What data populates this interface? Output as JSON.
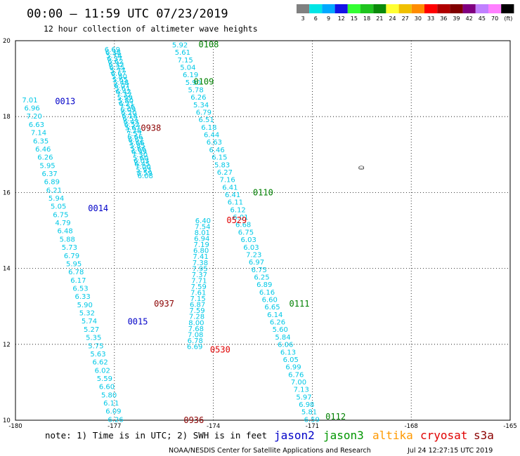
{
  "header": {
    "title": "00:00 – 11:59 UTC 07/23/2019",
    "subtitle": "12 hour collection of altimeter wave heights"
  },
  "legend": {
    "unit_label": "(ft)",
    "bins": [
      {
        "label": "3",
        "color": "#808080"
      },
      {
        "label": "6",
        "color": "#00e5e5"
      },
      {
        "label": "9",
        "color": "#00a8ff"
      },
      {
        "label": "12",
        "color": "#1414e6"
      },
      {
        "label": "15",
        "color": "#33ff33"
      },
      {
        "label": "18",
        "color": "#1fc41f"
      },
      {
        "label": "21",
        "color": "#0a8a0a"
      },
      {
        "label": "24",
        "color": "#ffff33"
      },
      {
        "label": "27",
        "color": "#f0c000"
      },
      {
        "label": "30",
        "color": "#ff8c00"
      },
      {
        "label": "33",
        "color": "#ff0000"
      },
      {
        "label": "36",
        "color": "#b00000"
      },
      {
        "label": "39",
        "color": "#800000"
      },
      {
        "label": "42",
        "color": "#800080"
      },
      {
        "label": "45",
        "color": "#c080ff"
      },
      {
        "label": "70",
        "color": "#ff80ff"
      },
      {
        "label": "",
        "color": "#000000"
      }
    ]
  },
  "map": {
    "lon_range": [
      -180,
      -165
    ],
    "lat_range": [
      10,
      20
    ],
    "lon_ticks": [
      "-180",
      "-177",
      "-174",
      "-171",
      "-168",
      "-165"
    ],
    "lat_ticks": [
      "10",
      "12",
      "14",
      "16",
      "18",
      "20"
    ],
    "island_label": "⛀"
  },
  "passes": [
    {
      "time": "0013",
      "satellite": "jason2",
      "color": "#0000c8",
      "lon": -178.8,
      "lat": 18.4
    },
    {
      "time": "0014",
      "satellite": "jason2",
      "color": "#0000c8",
      "lon": -177.8,
      "lat": 15.58
    },
    {
      "time": "0015",
      "satellite": "jason2",
      "color": "#0000c8",
      "lon": -176.6,
      "lat": 12.6
    },
    {
      "time": "0108",
      "satellite": "jason3",
      "color": "#008000",
      "lon": -174.45,
      "lat": 19.9
    },
    {
      "time": "0109",
      "satellite": "jason3",
      "color": "#008000",
      "lon": -174.6,
      "lat": 18.92
    },
    {
      "time": "0110",
      "satellite": "jason3",
      "color": "#008000",
      "lon": -172.8,
      "lat": 16.0
    },
    {
      "time": "0111",
      "satellite": "jason3",
      "color": "#008000",
      "lon": -171.7,
      "lat": 13.07
    },
    {
      "time": "0112",
      "satellite": "jason3",
      "color": "#008000",
      "lon": -170.6,
      "lat": 10.09
    },
    {
      "time": "0529",
      "satellite": "cryosat",
      "color": "#e00000",
      "lon": -173.6,
      "lat": 15.27
    },
    {
      "time": "0530",
      "satellite": "cryosat",
      "color": "#e00000",
      "lon": -174.1,
      "lat": 11.86
    },
    {
      "time": "0936",
      "satellite": "s3a",
      "color": "#8b0000",
      "lon": -174.9,
      "lat": 10.0
    },
    {
      "time": "0937",
      "satellite": "s3a",
      "color": "#8b0000",
      "lon": -175.8,
      "lat": 13.07
    },
    {
      "time": "0938",
      "satellite": "s3a",
      "color": "#8b0000",
      "lon": -176.2,
      "lat": 17.7
    }
  ],
  "tracks": [
    {
      "satellite": "jason2",
      "color": "#00c8e6",
      "start": [
        -179.8,
        18.45
      ],
      "end": [
        -177.2,
        10.03
      ],
      "values": [
        "7.01",
        "6.96",
        "7.20",
        "6.63",
        "7.14",
        "6.35",
        "6.46",
        "6.26",
        "5.95",
        "6.37",
        "6.89",
        "6.21",
        "5.94",
        "5.05",
        "6.75",
        "4.79",
        "6.48",
        "5.88",
        "5.73",
        "6.79",
        "5.95",
        "6.78",
        "6.17",
        "6.53",
        "6.33",
        "5.90",
        "5.32",
        "5.74",
        "5.27",
        "5.35",
        "5.75",
        "5.63",
        "6.62",
        "6.02",
        "5.59",
        "6.60",
        "5.80",
        "6.11",
        "6.09",
        "6.26"
      ]
    },
    {
      "satellite": "jason2",
      "color": "#00c8e6",
      "start": [
        -177.3,
        19.78
      ],
      "end": [
        -176.3,
        16.45
      ],
      "values": [
        "6.69",
        "6.38",
        "5.78",
        "6.37",
        "6.62",
        "6.32",
        "6.25",
        "5.77",
        "6.67",
        "5.80",
        "5.65",
        "5.48",
        "6.07",
        "5.61",
        "6.42",
        "7.32",
        "5.99",
        "5.80",
        "6.21",
        "7.56",
        "6.09",
        "6.20",
        "6.18",
        "6.52",
        "6.43",
        "6.52",
        "5.67",
        "7.28",
        "7.57",
        "6.66",
        "6.62",
        "5.66",
        "5.85",
        "5.66",
        "6.99",
        "7.30",
        "5.60",
        "6.03",
        "6.45",
        "7.00",
        "5.93",
        "8.59",
        "6.08"
      ]
    },
    {
      "satellite": "jason3",
      "color": "#00c8e6",
      "start": [
        -175.25,
        19.9
      ],
      "end": [
        -171.25,
        10.03
      ],
      "values": [
        "5.92",
        "5.61",
        "7.15",
        "5.04",
        "6.19",
        "5.90",
        "5.78",
        "6.26",
        "5.34",
        "6.79",
        "6.51",
        "6.18",
        "6.44",
        "6.63",
        "6.46",
        "6.15",
        "5.83",
        "6.27",
        "7.16",
        "6.41",
        "6.41",
        "6.11",
        "6.12",
        "6.01",
        "6.68",
        "6.75",
        "6.03",
        "6.03",
        "7.23",
        "6.97",
        "6.75",
        "6.25",
        "6.89",
        "6.16",
        "6.60",
        "6.65",
        "6.14",
        "6.26",
        "5.60",
        "5.84",
        "6.06",
        "6.13",
        "6.05",
        "6.99",
        "6.76",
        "7.00",
        "7.13",
        "5.97",
        "6.98",
        "5.81",
        "6.59"
      ]
    },
    {
      "satellite": "cryosat",
      "color": "#00c8e6",
      "start": [
        -174.55,
        15.27
      ],
      "end": [
        -174.8,
        11.95
      ],
      "values": [
        "6.40",
        "7.54",
        "8.01",
        "6.94",
        "7.19",
        "6.80",
        "7.41",
        "7.38",
        "7.95",
        "7.37",
        "7.71",
        "7.59",
        "7.61",
        "7.15",
        "6.87",
        "7.59",
        "7.28",
        "8.00",
        "7.68",
        "7.08",
        "6.78",
        "6.69"
      ]
    }
  ],
  "footer": {
    "note": "note: 1) Time is in UTC; 2) SWH is in feet",
    "satellites": [
      {
        "name": "jason2",
        "color": "#0000c8"
      },
      {
        "name": "jason3",
        "color": "#009600"
      },
      {
        "name": "altika",
        "color": "#ff9900"
      },
      {
        "name": "cryosat",
        "color": "#e00000"
      },
      {
        "name": "s3a",
        "color": "#8b0000"
      }
    ],
    "credit": "NOAA/NESDIS Center for Satellite Applications and Research",
    "timestamp": "Jul 24 12:27:15 UTC 2019"
  }
}
